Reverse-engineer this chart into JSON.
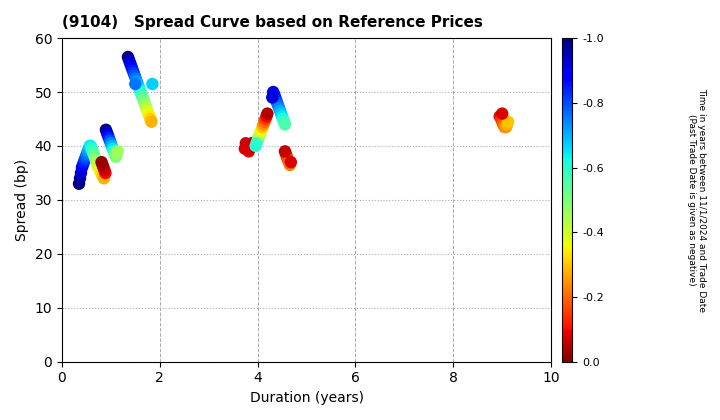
{
  "title": "(9104)   Spread Curve based on Reference Prices",
  "xlabel": "Duration (years)",
  "ylabel": "Spread (bp)",
  "colorbar_label_line1": "Time in years between 11/1/2024 and Trade Date",
  "colorbar_label_line2": "(Past Trade Date is given as negative)",
  "xlim": [
    0,
    10
  ],
  "ylim": [
    0,
    60
  ],
  "xticks": [
    0,
    2,
    4,
    6,
    8,
    10
  ],
  "yticks": [
    0,
    10,
    20,
    30,
    40,
    50,
    60
  ],
  "cmap": "jet",
  "clim": [
    -1.0,
    0.0
  ],
  "cticks": [
    0.0,
    -0.2,
    -0.4,
    -0.6,
    -0.8,
    -1.0
  ],
  "background": "#ffffff",
  "grid_color": "#aaaaaa",
  "points": [
    [
      0.35,
      33.0,
      -1.0
    ],
    [
      0.37,
      34.0,
      -0.97
    ],
    [
      0.39,
      35.0,
      -0.94
    ],
    [
      0.41,
      36.0,
      -0.91
    ],
    [
      0.43,
      36.5,
      -0.88
    ],
    [
      0.45,
      37.0,
      -0.85
    ],
    [
      0.47,
      37.5,
      -0.82
    ],
    [
      0.49,
      38.0,
      -0.79
    ],
    [
      0.51,
      38.5,
      -0.76
    ],
    [
      0.53,
      39.0,
      -0.73
    ],
    [
      0.55,
      39.5,
      -0.7
    ],
    [
      0.57,
      40.0,
      -0.67
    ],
    [
      0.59,
      40.0,
      -0.64
    ],
    [
      0.61,
      39.5,
      -0.61
    ],
    [
      0.63,
      39.0,
      -0.58
    ],
    [
      0.65,
      38.5,
      -0.55
    ],
    [
      0.67,
      38.0,
      -0.52
    ],
    [
      0.69,
      37.5,
      -0.49
    ],
    [
      0.71,
      37.0,
      -0.46
    ],
    [
      0.73,
      36.5,
      -0.43
    ],
    [
      0.75,
      36.0,
      -0.4
    ],
    [
      0.78,
      35.5,
      -0.37
    ],
    [
      0.8,
      35.0,
      -0.34
    ],
    [
      0.83,
      34.5,
      -0.31
    ],
    [
      0.86,
      34.0,
      -0.28
    ],
    [
      0.89,
      35.0,
      -0.1
    ],
    [
      0.87,
      35.5,
      -0.08
    ],
    [
      0.85,
      36.0,
      -0.06
    ],
    [
      0.83,
      36.5,
      -0.04
    ],
    [
      0.81,
      37.0,
      -0.02
    ],
    [
      0.9,
      43.0,
      -1.0
    ],
    [
      0.92,
      42.5,
      -0.95
    ],
    [
      0.94,
      42.0,
      -0.9
    ],
    [
      0.96,
      41.5,
      -0.85
    ],
    [
      0.98,
      41.0,
      -0.8
    ],
    [
      1.0,
      40.5,
      -0.75
    ],
    [
      1.02,
      40.0,
      -0.7
    ],
    [
      1.04,
      39.5,
      -0.65
    ],
    [
      1.06,
      39.0,
      -0.6
    ],
    [
      1.08,
      38.5,
      -0.55
    ],
    [
      1.1,
      38.0,
      -0.5
    ],
    [
      1.12,
      38.5,
      -0.48
    ],
    [
      1.14,
      39.0,
      -0.46
    ],
    [
      1.35,
      56.5,
      -1.0
    ],
    [
      1.37,
      56.0,
      -0.97
    ],
    [
      1.39,
      55.5,
      -0.94
    ],
    [
      1.41,
      55.0,
      -0.91
    ],
    [
      1.43,
      54.5,
      -0.88
    ],
    [
      1.45,
      54.0,
      -0.85
    ],
    [
      1.47,
      53.5,
      -0.82
    ],
    [
      1.49,
      53.0,
      -0.79
    ],
    [
      1.51,
      52.5,
      -0.76
    ],
    [
      1.53,
      52.0,
      -0.73
    ],
    [
      1.55,
      51.5,
      -0.7
    ],
    [
      1.57,
      51.0,
      -0.67
    ],
    [
      1.59,
      50.5,
      -0.64
    ],
    [
      1.61,
      50.0,
      -0.61
    ],
    [
      1.63,
      49.5,
      -0.58
    ],
    [
      1.65,
      49.0,
      -0.55
    ],
    [
      1.67,
      48.5,
      -0.52
    ],
    [
      1.69,
      48.0,
      -0.49
    ],
    [
      1.71,
      47.5,
      -0.46
    ],
    [
      1.73,
      47.0,
      -0.43
    ],
    [
      1.75,
      46.5,
      -0.4
    ],
    [
      1.77,
      46.0,
      -0.37
    ],
    [
      1.79,
      45.5,
      -0.34
    ],
    [
      1.81,
      45.0,
      -0.31
    ],
    [
      1.83,
      44.5,
      -0.28
    ],
    [
      1.85,
      51.5,
      -0.67
    ],
    [
      1.5,
      51.5,
      -0.76
    ],
    [
      3.78,
      40.0,
      -0.05
    ],
    [
      3.8,
      39.5,
      -0.07
    ],
    [
      3.82,
      39.0,
      -0.09
    ],
    [
      3.84,
      39.5,
      -0.06
    ],
    [
      3.86,
      40.0,
      -0.03
    ],
    [
      3.88,
      40.5,
      -0.04
    ],
    [
      3.76,
      40.5,
      -0.06
    ],
    [
      3.74,
      39.5,
      -0.08
    ],
    [
      4.0,
      41.0,
      -0.55
    ],
    [
      4.02,
      41.5,
      -0.5
    ],
    [
      4.04,
      42.0,
      -0.45
    ],
    [
      4.06,
      42.5,
      -0.4
    ],
    [
      4.08,
      43.0,
      -0.35
    ],
    [
      4.1,
      43.5,
      -0.3
    ],
    [
      4.12,
      44.0,
      -0.25
    ],
    [
      4.14,
      44.5,
      -0.2
    ],
    [
      4.16,
      45.0,
      -0.15
    ],
    [
      4.18,
      45.5,
      -0.1
    ],
    [
      4.2,
      46.0,
      -0.05
    ],
    [
      3.98,
      40.5,
      -0.58
    ],
    [
      3.96,
      40.0,
      -0.6
    ],
    [
      4.32,
      50.0,
      -0.92
    ],
    [
      4.34,
      49.5,
      -0.89
    ],
    [
      4.36,
      49.0,
      -0.86
    ],
    [
      4.38,
      48.5,
      -0.83
    ],
    [
      4.4,
      48.0,
      -0.8
    ],
    [
      4.42,
      47.5,
      -0.77
    ],
    [
      4.44,
      47.0,
      -0.74
    ],
    [
      4.46,
      46.5,
      -0.71
    ],
    [
      4.48,
      46.0,
      -0.68
    ],
    [
      4.5,
      45.5,
      -0.65
    ],
    [
      4.52,
      45.0,
      -0.62
    ],
    [
      4.54,
      44.5,
      -0.59
    ],
    [
      4.56,
      44.0,
      -0.56
    ],
    [
      4.3,
      49.0,
      -0.92
    ],
    [
      4.58,
      38.5,
      -0.1
    ],
    [
      4.6,
      38.0,
      -0.13
    ],
    [
      4.62,
      37.5,
      -0.16
    ],
    [
      4.64,
      37.0,
      -0.19
    ],
    [
      4.66,
      36.5,
      -0.22
    ],
    [
      4.68,
      37.0,
      -0.08
    ],
    [
      4.56,
      39.0,
      -0.06
    ],
    [
      8.95,
      45.5,
      -0.1
    ],
    [
      8.98,
      45.0,
      -0.13
    ],
    [
      9.0,
      44.5,
      -0.16
    ],
    [
      9.02,
      44.0,
      -0.19
    ],
    [
      9.05,
      43.5,
      -0.22
    ],
    [
      9.08,
      43.5,
      -0.25
    ],
    [
      9.1,
      44.0,
      -0.28
    ],
    [
      9.12,
      44.5,
      -0.3
    ],
    [
      9.0,
      46.0,
      -0.08
    ]
  ]
}
